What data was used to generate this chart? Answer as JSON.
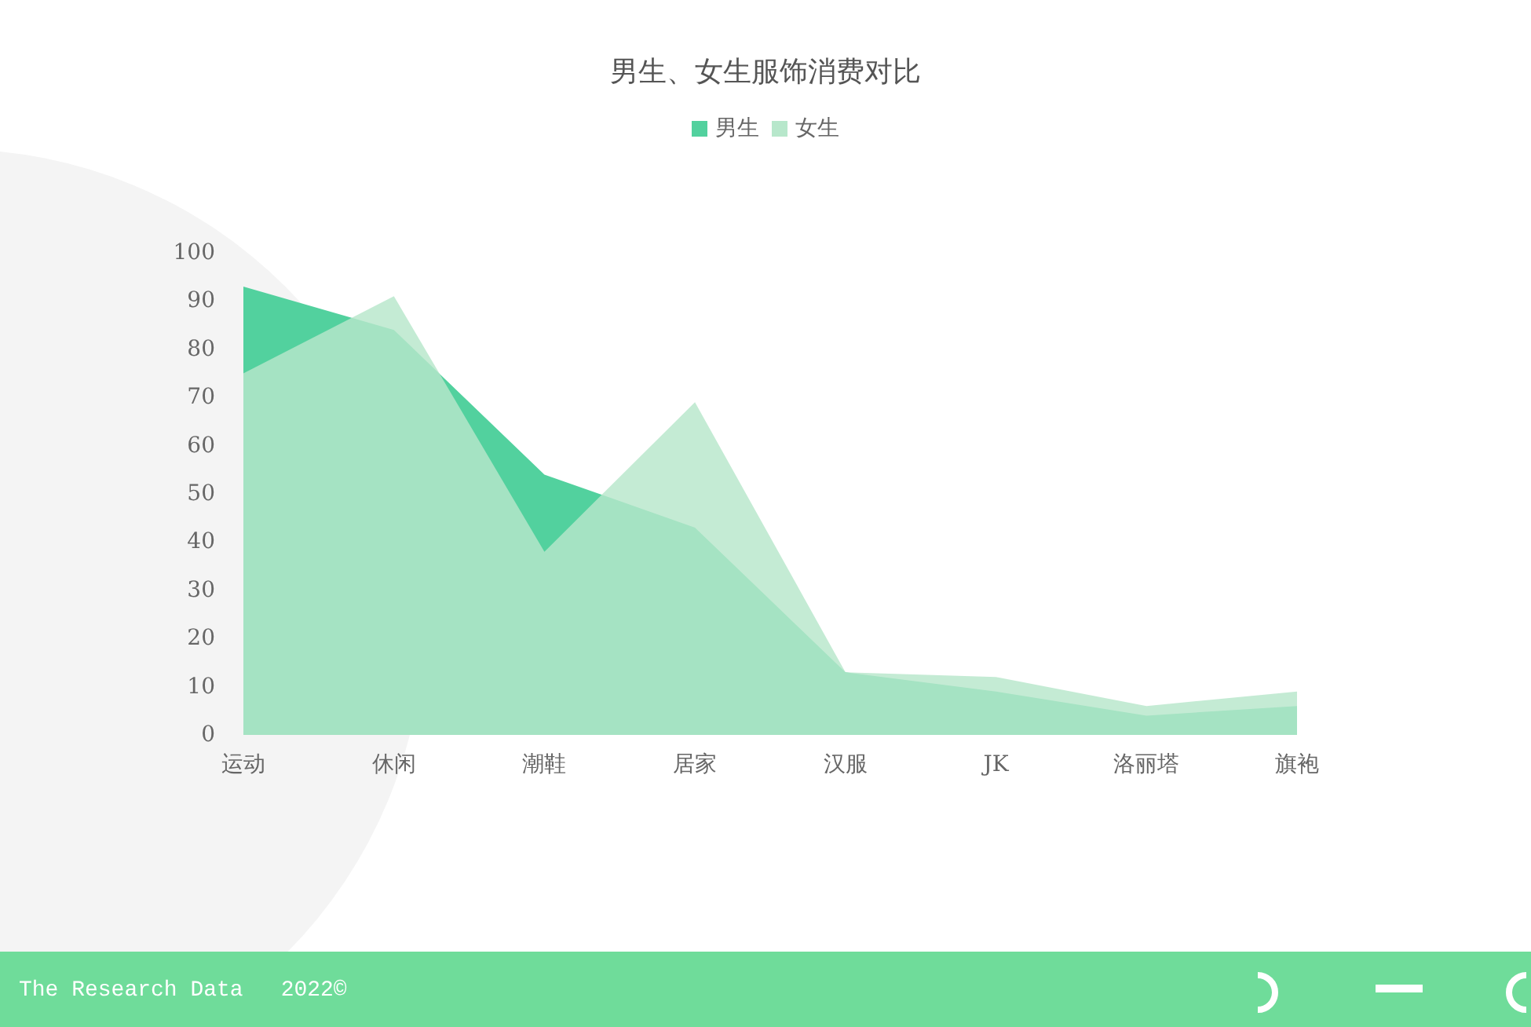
{
  "chart_data": {
    "type": "area",
    "title": "男生、女生服饰消费对比",
    "categories": [
      "运动",
      "休闲",
      "潮鞋",
      "居家",
      "汉服",
      "JK",
      "洛丽塔",
      "旗袍"
    ],
    "series": [
      {
        "name": "男生",
        "color": "#52d19e",
        "values": [
          93,
          84,
          54,
          43,
          13,
          9,
          4,
          6
        ]
      },
      {
        "name": "女生",
        "color": "#b7e7cb",
        "values": [
          75,
          91,
          38,
          69,
          13,
          12,
          6,
          9
        ]
      }
    ],
    "ylim": [
      0,
      100
    ],
    "yticks": [
      0,
      10,
      20,
      30,
      40,
      50,
      60,
      70,
      80,
      90,
      100
    ],
    "grid": false,
    "legend": "top",
    "marker": "none",
    "annotations": [
      "The Research Data",
      "2022©"
    ]
  }
}
